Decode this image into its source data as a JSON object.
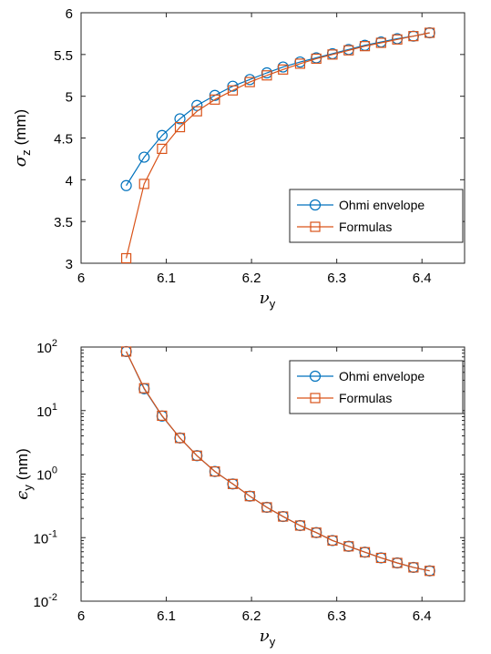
{
  "colors": {
    "ohmi": "#0072BD",
    "formulas": "#D95319"
  },
  "chart_data": [
    {
      "type": "line",
      "xlabel_symbol": "ν",
      "xlabel_sub": "y",
      "ylabel_symbol": "σ",
      "ylabel_sub": "z",
      "ylabel_unit": "(mm)",
      "xlim": [
        6,
        6.45
      ],
      "ylim": [
        3,
        6
      ],
      "xticks": [
        "6",
        "6.1",
        "6.2",
        "6.3",
        "6.4"
      ],
      "yticks": [
        "3",
        "3.5",
        "4",
        "4.5",
        "5",
        "5.5",
        "6"
      ],
      "legend_position": "bottom-right",
      "x": [
        6.053,
        6.074,
        6.095,
        6.116,
        6.136,
        6.157,
        6.178,
        6.198,
        6.218,
        6.237,
        6.257,
        6.276,
        6.295,
        6.314,
        6.333,
        6.352,
        6.371,
        6.39,
        6.409
      ],
      "series": [
        {
          "name": "Ohmi envelope",
          "marker": "circle",
          "values": [
            3.93,
            4.27,
            4.53,
            4.73,
            4.89,
            5.01,
            5.12,
            5.2,
            5.28,
            5.35,
            5.41,
            5.46,
            5.51,
            5.56,
            5.61,
            5.65,
            5.69,
            5.72,
            5.76
          ]
        },
        {
          "name": "Formulas",
          "marker": "square",
          "values": [
            3.06,
            3.95,
            4.37,
            4.63,
            4.82,
            4.96,
            5.07,
            5.17,
            5.25,
            5.32,
            5.39,
            5.45,
            5.5,
            5.55,
            5.6,
            5.64,
            5.68,
            5.72,
            5.76
          ]
        }
      ]
    },
    {
      "type": "line",
      "xlabel_symbol": "ν",
      "xlabel_sub": "y",
      "ylabel_symbol": "ϵ",
      "ylabel_sub": "y",
      "ylabel_unit": "(nm)",
      "xlim": [
        6,
        6.45
      ],
      "ylim": [
        0.01,
        100
      ],
      "yscale": "log",
      "xticks": [
        "6",
        "6.1",
        "6.2",
        "6.3",
        "6.4"
      ],
      "yticks": [
        {
          "value": 0.01,
          "base": "10",
          "exp": "-2"
        },
        {
          "value": 0.1,
          "base": "10",
          "exp": "-1"
        },
        {
          "value": 1,
          "base": "10",
          "exp": "0"
        },
        {
          "value": 10,
          "base": "10",
          "exp": "1"
        },
        {
          "value": 100,
          "base": "10",
          "exp": "2"
        }
      ],
      "legend_position": "top-right",
      "x": [
        6.053,
        6.074,
        6.095,
        6.116,
        6.136,
        6.157,
        6.178,
        6.198,
        6.218,
        6.237,
        6.257,
        6.276,
        6.295,
        6.314,
        6.333,
        6.352,
        6.371,
        6.39,
        6.409
      ],
      "series": [
        {
          "name": "Ohmi envelope",
          "marker": "circle",
          "values": [
            85,
            22,
            8.2,
            3.7,
            1.95,
            1.1,
            0.7,
            0.45,
            0.3,
            0.215,
            0.155,
            0.12,
            0.09,
            0.073,
            0.059,
            0.048,
            0.04,
            0.034,
            0.03
          ]
        },
        {
          "name": "Formulas",
          "marker": "square",
          "values": [
            85,
            22.5,
            8.3,
            3.7,
            1.95,
            1.1,
            0.7,
            0.45,
            0.3,
            0.215,
            0.155,
            0.12,
            0.09,
            0.073,
            0.059,
            0.048,
            0.04,
            0.034,
            0.03
          ]
        }
      ]
    }
  ]
}
